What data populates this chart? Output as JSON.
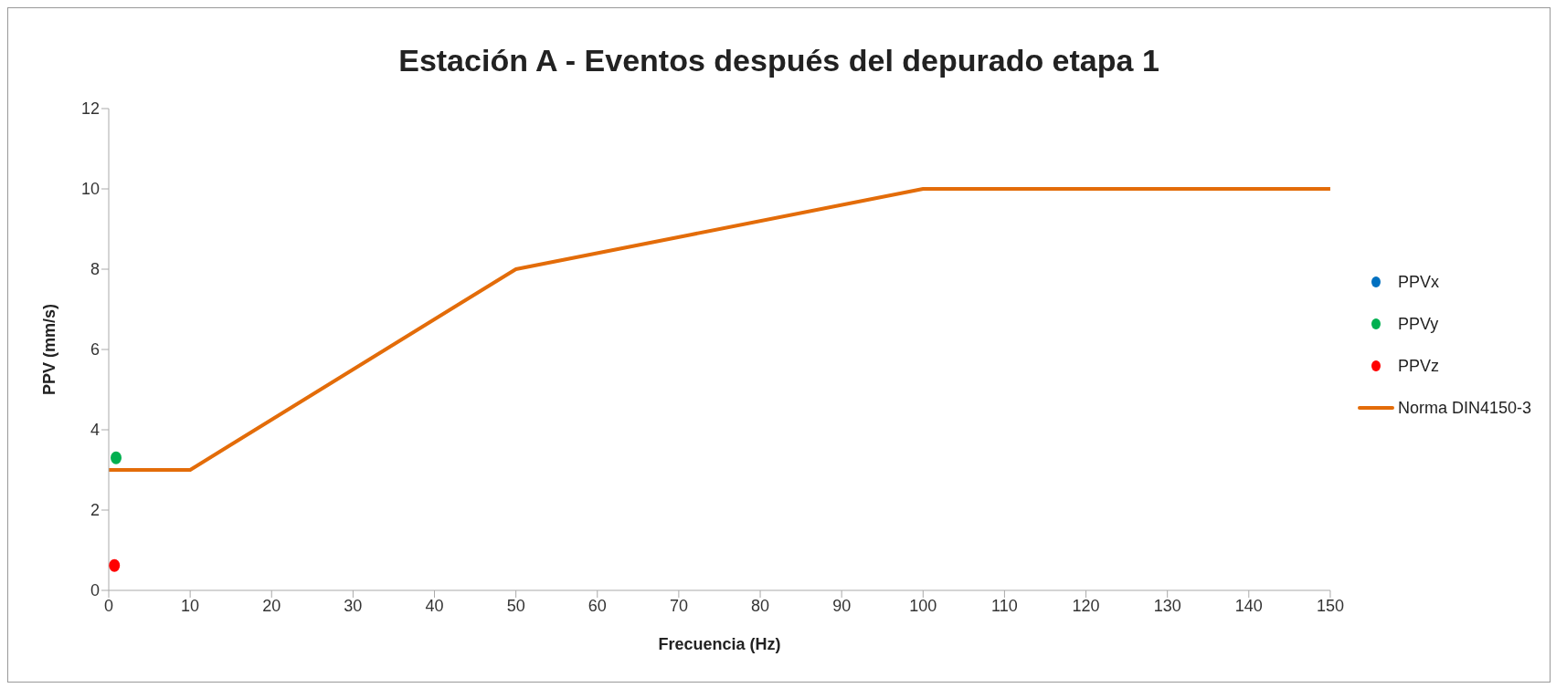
{
  "chart_data": {
    "type": "scatter",
    "title": "Estación A - Eventos después del depurado etapa 1",
    "xlabel": "Frecuencia (Hz)",
    "ylabel": "PPV (mm/s)",
    "xlim": [
      0,
      150
    ],
    "xticks": [
      0,
      10,
      20,
      30,
      40,
      50,
      60,
      70,
      80,
      90,
      100,
      110,
      120,
      130,
      140,
      150
    ],
    "ylim": [
      0,
      12
    ],
    "yticks": [
      0,
      2,
      4,
      6,
      8,
      10,
      12
    ],
    "grid": false,
    "legend": "right",
    "series": [
      {
        "name": "PPVx",
        "color": "#0070c0",
        "marker": "circle"
      },
      {
        "name": "PPVy",
        "color": "#00b050",
        "marker": "circle",
        "x": [
          0.9
        ],
        "values": [
          3.3
        ]
      },
      {
        "name": "PPVz",
        "color": "#ff0000",
        "marker": "circle",
        "x": [
          0.7
        ],
        "values": [
          0.62
        ]
      },
      {
        "name": "Norma DIN4150-3",
        "type": "line",
        "color": "#e36c09",
        "marker": "none",
        "line_style": "solid",
        "x": [
          0,
          10,
          50,
          100,
          150
        ],
        "values": [
          3,
          3,
          8,
          10,
          10
        ]
      }
    ]
  }
}
